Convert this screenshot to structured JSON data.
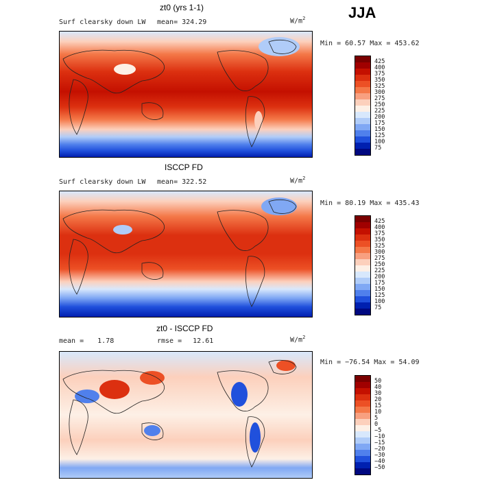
{
  "season": "JJA",
  "panels": [
    {
      "title": "zt0 (yrs 1-1)",
      "left_label": "Surf clearsky down LW",
      "mean_label": "mean=",
      "mean_value": "324.29",
      "units": "W/m",
      "units_sup": "2",
      "minmax": "Min =  60.57 Max = 453.62",
      "scale": {
        "labels": [
          "425",
          "400",
          "375",
          "350",
          "325",
          "300",
          "275",
          "250",
          "225",
          "200",
          "175",
          "150",
          "125",
          "100",
          "75"
        ]
      }
    },
    {
      "title": "ISCCP FD",
      "left_label": "Surf clearsky down LW",
      "mean_label": "mean=",
      "mean_value": "322.52",
      "units": "W/m",
      "units_sup": "2",
      "minmax": "Min =  80.19 Max = 435.43",
      "scale": {
        "labels": [
          "425",
          "400",
          "375",
          "350",
          "325",
          "300",
          "275",
          "250",
          "225",
          "200",
          "175",
          "150",
          "125",
          "100",
          "75"
        ]
      }
    },
    {
      "title": "zt0 - ISCCP FD",
      "left_label": "mean =",
      "left_value": "1.78",
      "mid_label": "rmse =",
      "mid_value": "12.61",
      "units": "W/m",
      "units_sup": "2",
      "minmax": "Min = −76.54 Max =  54.09",
      "scale": {
        "labels": [
          "50",
          "40",
          "30",
          "20",
          "15",
          "10",
          "5",
          "0",
          "−5",
          "−10",
          "−15",
          "−20",
          "−30",
          "−40",
          "−50"
        ]
      }
    }
  ],
  "palette": [
    "#7a0000",
    "#a00000",
    "#c41000",
    "#dc3010",
    "#ec5025",
    "#f47848",
    "#f8a080",
    "#fcd0bc",
    "#fdf0e6",
    "#d8e8fc",
    "#b0ccf8",
    "#80a8f4",
    "#5080ec",
    "#2050dc",
    "#0020b0",
    "#000880"
  ],
  "colors": {
    "land_outline": "#222222",
    "map_border": "#000000"
  }
}
